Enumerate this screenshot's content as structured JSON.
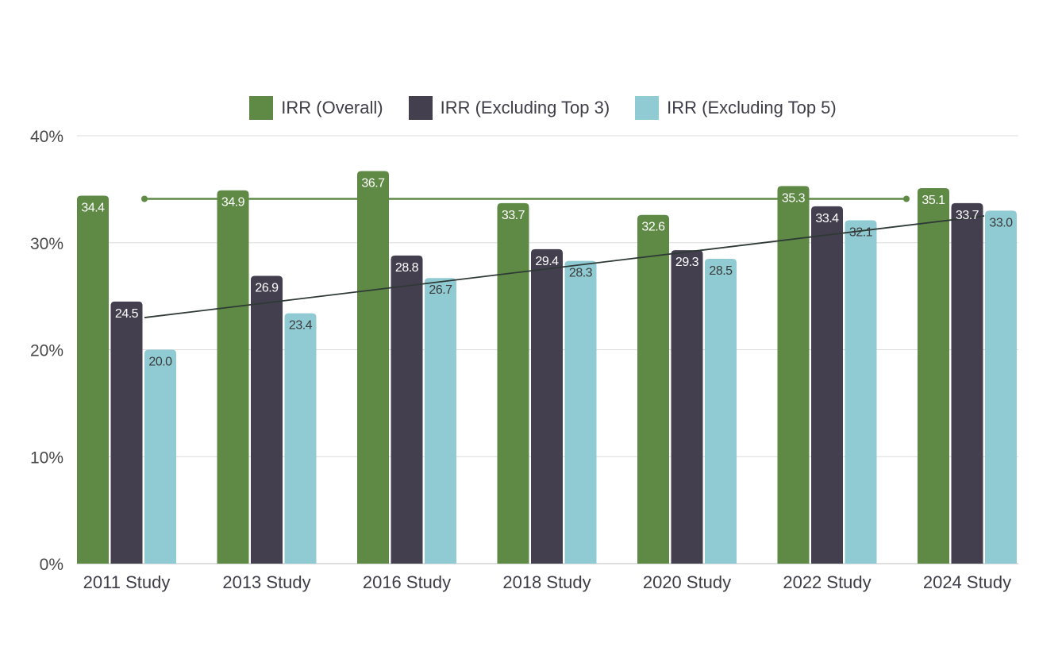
{
  "chart_data": {
    "type": "bar",
    "categories": [
      "2011 Study",
      "2013 Study",
      "2016 Study",
      "2018 Study",
      "2020 Study",
      "2022 Study",
      "2024 Study"
    ],
    "series": [
      {
        "name": "IRR (Overall)",
        "values": [
          34.4,
          34.9,
          36.7,
          33.7,
          32.6,
          35.3,
          35.1
        ],
        "color": "#5f8a45",
        "label_color": "#ffffff"
      },
      {
        "name": "IRR (Excluding Top 3)",
        "values": [
          24.5,
          26.9,
          28.8,
          29.4,
          29.3,
          33.4,
          33.7
        ],
        "color": "#433f4e",
        "label_color": "#ffffff"
      },
      {
        "name": "IRR (Excluding Top 5)",
        "values": [
          20.0,
          23.4,
          26.7,
          28.3,
          28.5,
          32.1,
          33.0
        ],
        "color": "#90cbd3",
        "label_color": "#3a3a3a"
      }
    ],
    "ylim": [
      0,
      40
    ],
    "yticks": [
      "0%",
      "10%",
      "20%",
      "30%",
      "40%"
    ],
    "ytick_values": [
      0,
      10,
      20,
      30,
      40
    ],
    "grid": true,
    "legend_position": "top-center",
    "reference_lines": [
      {
        "type": "average-overall",
        "value": 34.1,
        "color": "#5f8a45"
      },
      {
        "type": "trend-excluding-top-3",
        "start": 23.0,
        "end": 32.5,
        "color": "#2f3a36"
      }
    ]
  }
}
